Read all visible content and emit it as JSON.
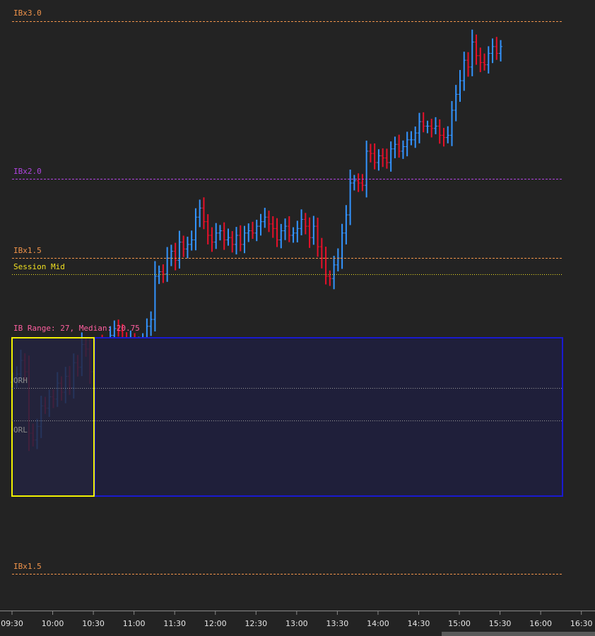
{
  "chart_data": {
    "type": "ohlc",
    "y_range": [
      -21,
      118
    ],
    "x_range_minutes": [
      0,
      420
    ],
    "time_ticks": [
      "09:30",
      "10:00",
      "10:30",
      "11:00",
      "11:30",
      "12:00",
      "12:30",
      "13:00",
      "13:30",
      "14:00",
      "14:30",
      "15:00",
      "15:30",
      "16:00",
      "16:30"
    ],
    "levels": [
      {
        "name": "ibx3-upper",
        "label": "IBx3.0",
        "value": 108,
        "color": "#f0934a",
        "style": "dashed"
      },
      {
        "name": "ibx2-upper",
        "label": "IBx2.0",
        "value": 81,
        "color": "#b044e0",
        "style": "dashed"
      },
      {
        "name": "ibx15-upper",
        "label": "IBx1.5",
        "value": 67.5,
        "color": "#f0934a",
        "style": "dashed"
      },
      {
        "name": "session-mid",
        "label": "Session Mid",
        "value": 64.5,
        "color": "#f0e020",
        "style": "dotted"
      },
      {
        "name": "orh",
        "label": "ORH",
        "value": 32,
        "color": "#bbbbbb",
        "style": "dotted"
      },
      {
        "name": "orl",
        "label": "ORL",
        "value": 26,
        "color": "#bbbbbb",
        "style": "dotted"
      },
      {
        "name": "ibx15-lower",
        "label": "IBx1.5",
        "value": -13.5,
        "color": "#f0934a",
        "style": "dashed"
      }
    ],
    "ib_box": {
      "label": "IB Range: 27, Median: 20.75",
      "high": 41,
      "low": 14,
      "label_color": "#ff5fa0"
    },
    "ib_period_minutes": [
      0,
      60
    ],
    "bar_interval_minutes": 3,
    "up_color": "#3394ff",
    "down_color": "#e8102a",
    "closes": [
      29.5,
      30.5,
      33.5,
      31,
      17.5,
      16,
      19,
      23.5,
      23,
      25.5,
      25,
      28.5,
      26.5,
      30,
      27.5,
      33,
      32,
      37,
      36,
      31,
      34.5,
      37,
      33,
      33.5,
      39,
      40.5,
      40,
      38,
      37,
      38,
      36,
      37,
      37.5,
      41,
      42.5,
      52,
      53,
      52.5,
      56,
      57.5,
      55.5,
      59.5,
      58,
      59,
      60,
      65,
      67,
      64,
      61,
      59.5,
      61.5,
      62,
      60,
      60.5,
      59,
      61,
      59,
      61.5,
      62,
      61.5,
      63,
      64,
      65,
      63.5,
      62.5,
      60,
      62,
      63,
      61,
      61.5,
      62.5,
      64.5,
      63,
      60.5,
      63,
      58.5,
      56,
      52,
      51.5,
      54.5,
      56,
      61.5,
      65.5,
      72.5,
      73,
      72.5,
      72,
      79.5,
      79,
      77,
      78.5,
      78,
      77,
      80,
      81,
      79.5,
      80.5,
      82,
      82,
      83.5,
      86,
      85,
      85,
      84.5,
      85,
      83,
      82.5,
      83,
      88.5,
      92,
      95,
      99.5,
      98,
      103.5,
      100.5,
      99,
      98.5,
      101,
      102.5,
      101,
      102.5
    ],
    "session": "09:30-16:00"
  },
  "labels": {
    "ibx3": "IBx3.0",
    "ibx2": "IBx2.0",
    "ibx15_upper": "IBx1.5",
    "session_mid": "Session Mid",
    "ib_range": "IB Range: 27, Median: 20.75",
    "orh": "ORH",
    "orl": "ORL",
    "ibx15_lower": "IBx1.5"
  }
}
